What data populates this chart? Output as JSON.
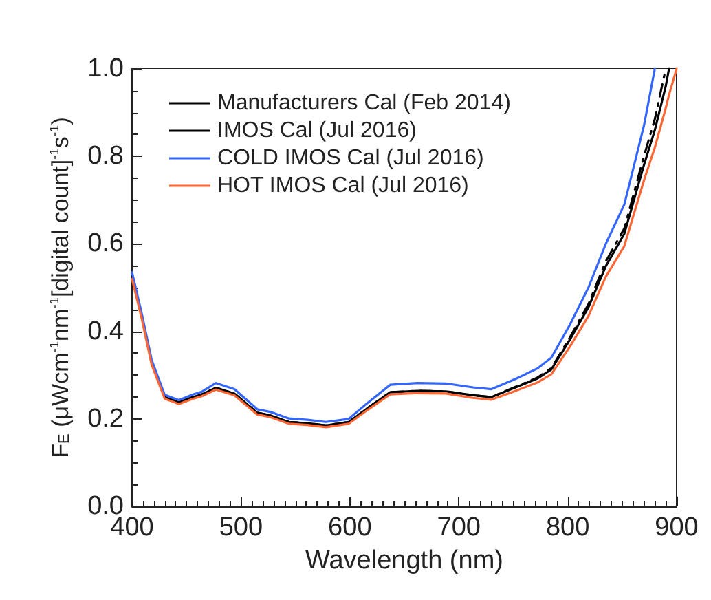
{
  "chart_data": {
    "type": "line",
    "xlabel": "Wavelength (nm)",
    "ylabel": "F$_{E}$ (μWcm$^{-1}$nm$^{-1}$[digital count]$^{-1}$s$^{-1}$)",
    "x": [
      400,
      409,
      418,
      430,
      443,
      456,
      464,
      477,
      494,
      515,
      527,
      544,
      561,
      578,
      599,
      616,
      637,
      662,
      688,
      713,
      730,
      751,
      772,
      785,
      802,
      819,
      835,
      852,
      870,
      880,
      890,
      893,
      900
    ],
    "series": [
      {
        "name": "Manufacturers Cal (Feb 2014)",
        "color": "#000000",
        "line_style": "dashed",
        "values": [
          0.528,
          0.434,
          0.329,
          0.25,
          0.238,
          0.25,
          0.256,
          0.271,
          0.258,
          0.214,
          0.208,
          0.193,
          0.19,
          0.185,
          0.193,
          0.224,
          0.261,
          0.264,
          0.263,
          0.254,
          0.25,
          0.272,
          0.294,
          0.316,
          0.386,
          0.462,
          0.56,
          0.635,
          0.8,
          0.885,
          1.0,
          null,
          null
        ]
      },
      {
        "name": "IMOS Cal (Jul 2016)",
        "color": "#000000",
        "line_style": "solid",
        "values": [
          0.528,
          0.434,
          0.329,
          0.25,
          0.238,
          0.25,
          0.256,
          0.271,
          0.258,
          0.214,
          0.208,
          0.193,
          0.19,
          0.185,
          0.193,
          0.224,
          0.261,
          0.264,
          0.263,
          0.254,
          0.25,
          0.271,
          0.292,
          0.313,
          0.381,
          0.455,
          0.549,
          0.623,
          0.78,
          0.86,
          0.96,
          1.0,
          null
        ]
      },
      {
        "name": "COLD IMOS Cal (Jul 2016)",
        "color": "#3366ff",
        "line_style": "solid",
        "values": [
          0.535,
          0.44,
          0.335,
          0.255,
          0.243,
          0.256,
          0.262,
          0.282,
          0.268,
          0.222,
          0.216,
          0.201,
          0.198,
          0.193,
          0.2,
          0.236,
          0.278,
          0.282,
          0.281,
          0.272,
          0.268,
          0.29,
          0.315,
          0.34,
          0.415,
          0.5,
          0.6,
          0.69,
          0.87,
          1.0,
          null,
          null,
          null
        ]
      },
      {
        "name": "HOT IMOS Cal (Jul 2016)",
        "color": "#ff6633",
        "line_style": "solid",
        "values": [
          0.52,
          0.428,
          0.324,
          0.246,
          0.234,
          0.246,
          0.252,
          0.267,
          0.254,
          0.21,
          0.204,
          0.189,
          0.186,
          0.181,
          0.189,
          0.22,
          0.256,
          0.259,
          0.258,
          0.248,
          0.244,
          0.263,
          0.283,
          0.302,
          0.365,
          0.435,
          0.525,
          0.595,
          0.745,
          0.82,
          0.91,
          0.94,
          1.0
        ]
      }
    ],
    "xlim": [
      400,
      900
    ],
    "xticks": [
      400,
      500,
      600,
      700,
      800,
      900
    ],
    "ylim": [
      0,
      1
    ],
    "yticks": [
      {
        "value": 0,
        "label": "0.0"
      },
      {
        "value": 0.2,
        "label": "0.2"
      },
      {
        "value": 0.4,
        "label": "0.4"
      },
      {
        "value": 0.6,
        "label": "0.6"
      },
      {
        "value": 0.8,
        "label": "0.8"
      },
      {
        "value": 1,
        "label": "1.0"
      }
    ],
    "grid": false,
    "legend": "top left",
    "marker": "none"
  }
}
